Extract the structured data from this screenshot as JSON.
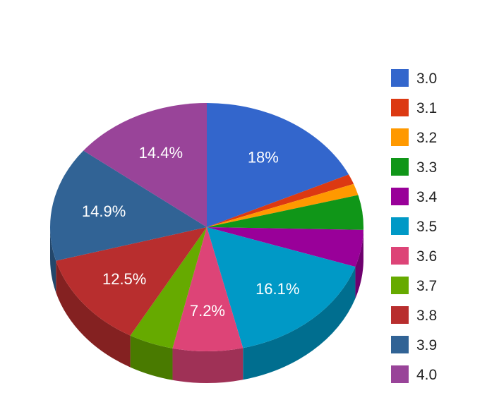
{
  "chart_data": {
    "type": "pie",
    "title": "",
    "style": "3d",
    "legend_position": "right",
    "categories": [
      "3.0",
      "3.1",
      "3.2",
      "3.3",
      "3.4",
      "3.5",
      "3.6",
      "3.7",
      "3.8",
      "3.9",
      "4.0"
    ],
    "values": [
      18,
      1.3,
      1.5,
      4.5,
      4.8,
      16.1,
      7.2,
      4.6,
      12.5,
      14.9,
      14.4
    ],
    "labels": [
      "18%",
      "",
      "",
      "",
      "",
      "16.1%",
      "7.2%",
      "",
      "12.5%",
      "14.9%",
      "14.4%"
    ],
    "colors": [
      "#3366cc",
      "#dc3912",
      "#ff9900",
      "#109618",
      "#990099",
      "#0099c6",
      "#dd4477",
      "#66aa00",
      "#b82e2e",
      "#316395",
      "#994499"
    ]
  }
}
